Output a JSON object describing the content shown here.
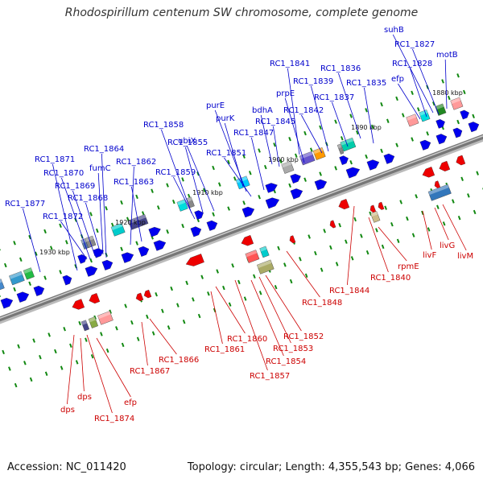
{
  "title": "Rhodospirillum centenum SW chromosome, complete genome",
  "footer": {
    "accession": "Accession: NC_011420",
    "summary": "Topology: circular; Length: 4,355,543 bp; Genes: 4,066"
  },
  "colors": {
    "forward_label": "#0000cc",
    "reverse_label": "#cc0000",
    "forward_arrow": "#0000ee",
    "reverse_arrow": "#ee0000",
    "backbone": "#777777",
    "tick": "#118811"
  },
  "scale_labels": [
    "1880 kbp",
    "1890 kbp",
    "1900 kbp",
    "1910 kbp",
    "1920 kbp",
    "1930 kbp"
  ],
  "forward_genes": [
    "suhB",
    "RC1_1827",
    "motB",
    "RC1_1828",
    "efp",
    "RC1_1841",
    "RC1_1836",
    "RC1_1839",
    "RC1_1835",
    "prpE",
    "RC1_1837",
    "bdhA",
    "RC1_1842",
    "RC1_1845",
    "purE",
    "purK",
    "RC1_1847",
    "RC1_1858",
    "ubiX",
    "RC1_1855",
    "RC1_1851",
    "RC1_1859",
    "RC1_1864",
    "fumC",
    "RC1_1862",
    "RC1_1863",
    "RC1_1871",
    "RC1_1870",
    "RC1_1869",
    "RC1_1868",
    "RC1_1877",
    "RC1_1872"
  ],
  "reverse_genes": [
    "livF",
    "livG",
    "livM",
    "rpmE",
    "RC1_1840",
    "RC1_1844",
    "RC1_1848",
    "RC1_1852",
    "RC1_1853",
    "RC1_1854",
    "RC1_1857",
    "RC1_1860",
    "RC1_1861",
    "RC1_1866",
    "RC1_1867",
    "efp",
    "dps",
    "dps",
    "RC1_1874"
  ]
}
